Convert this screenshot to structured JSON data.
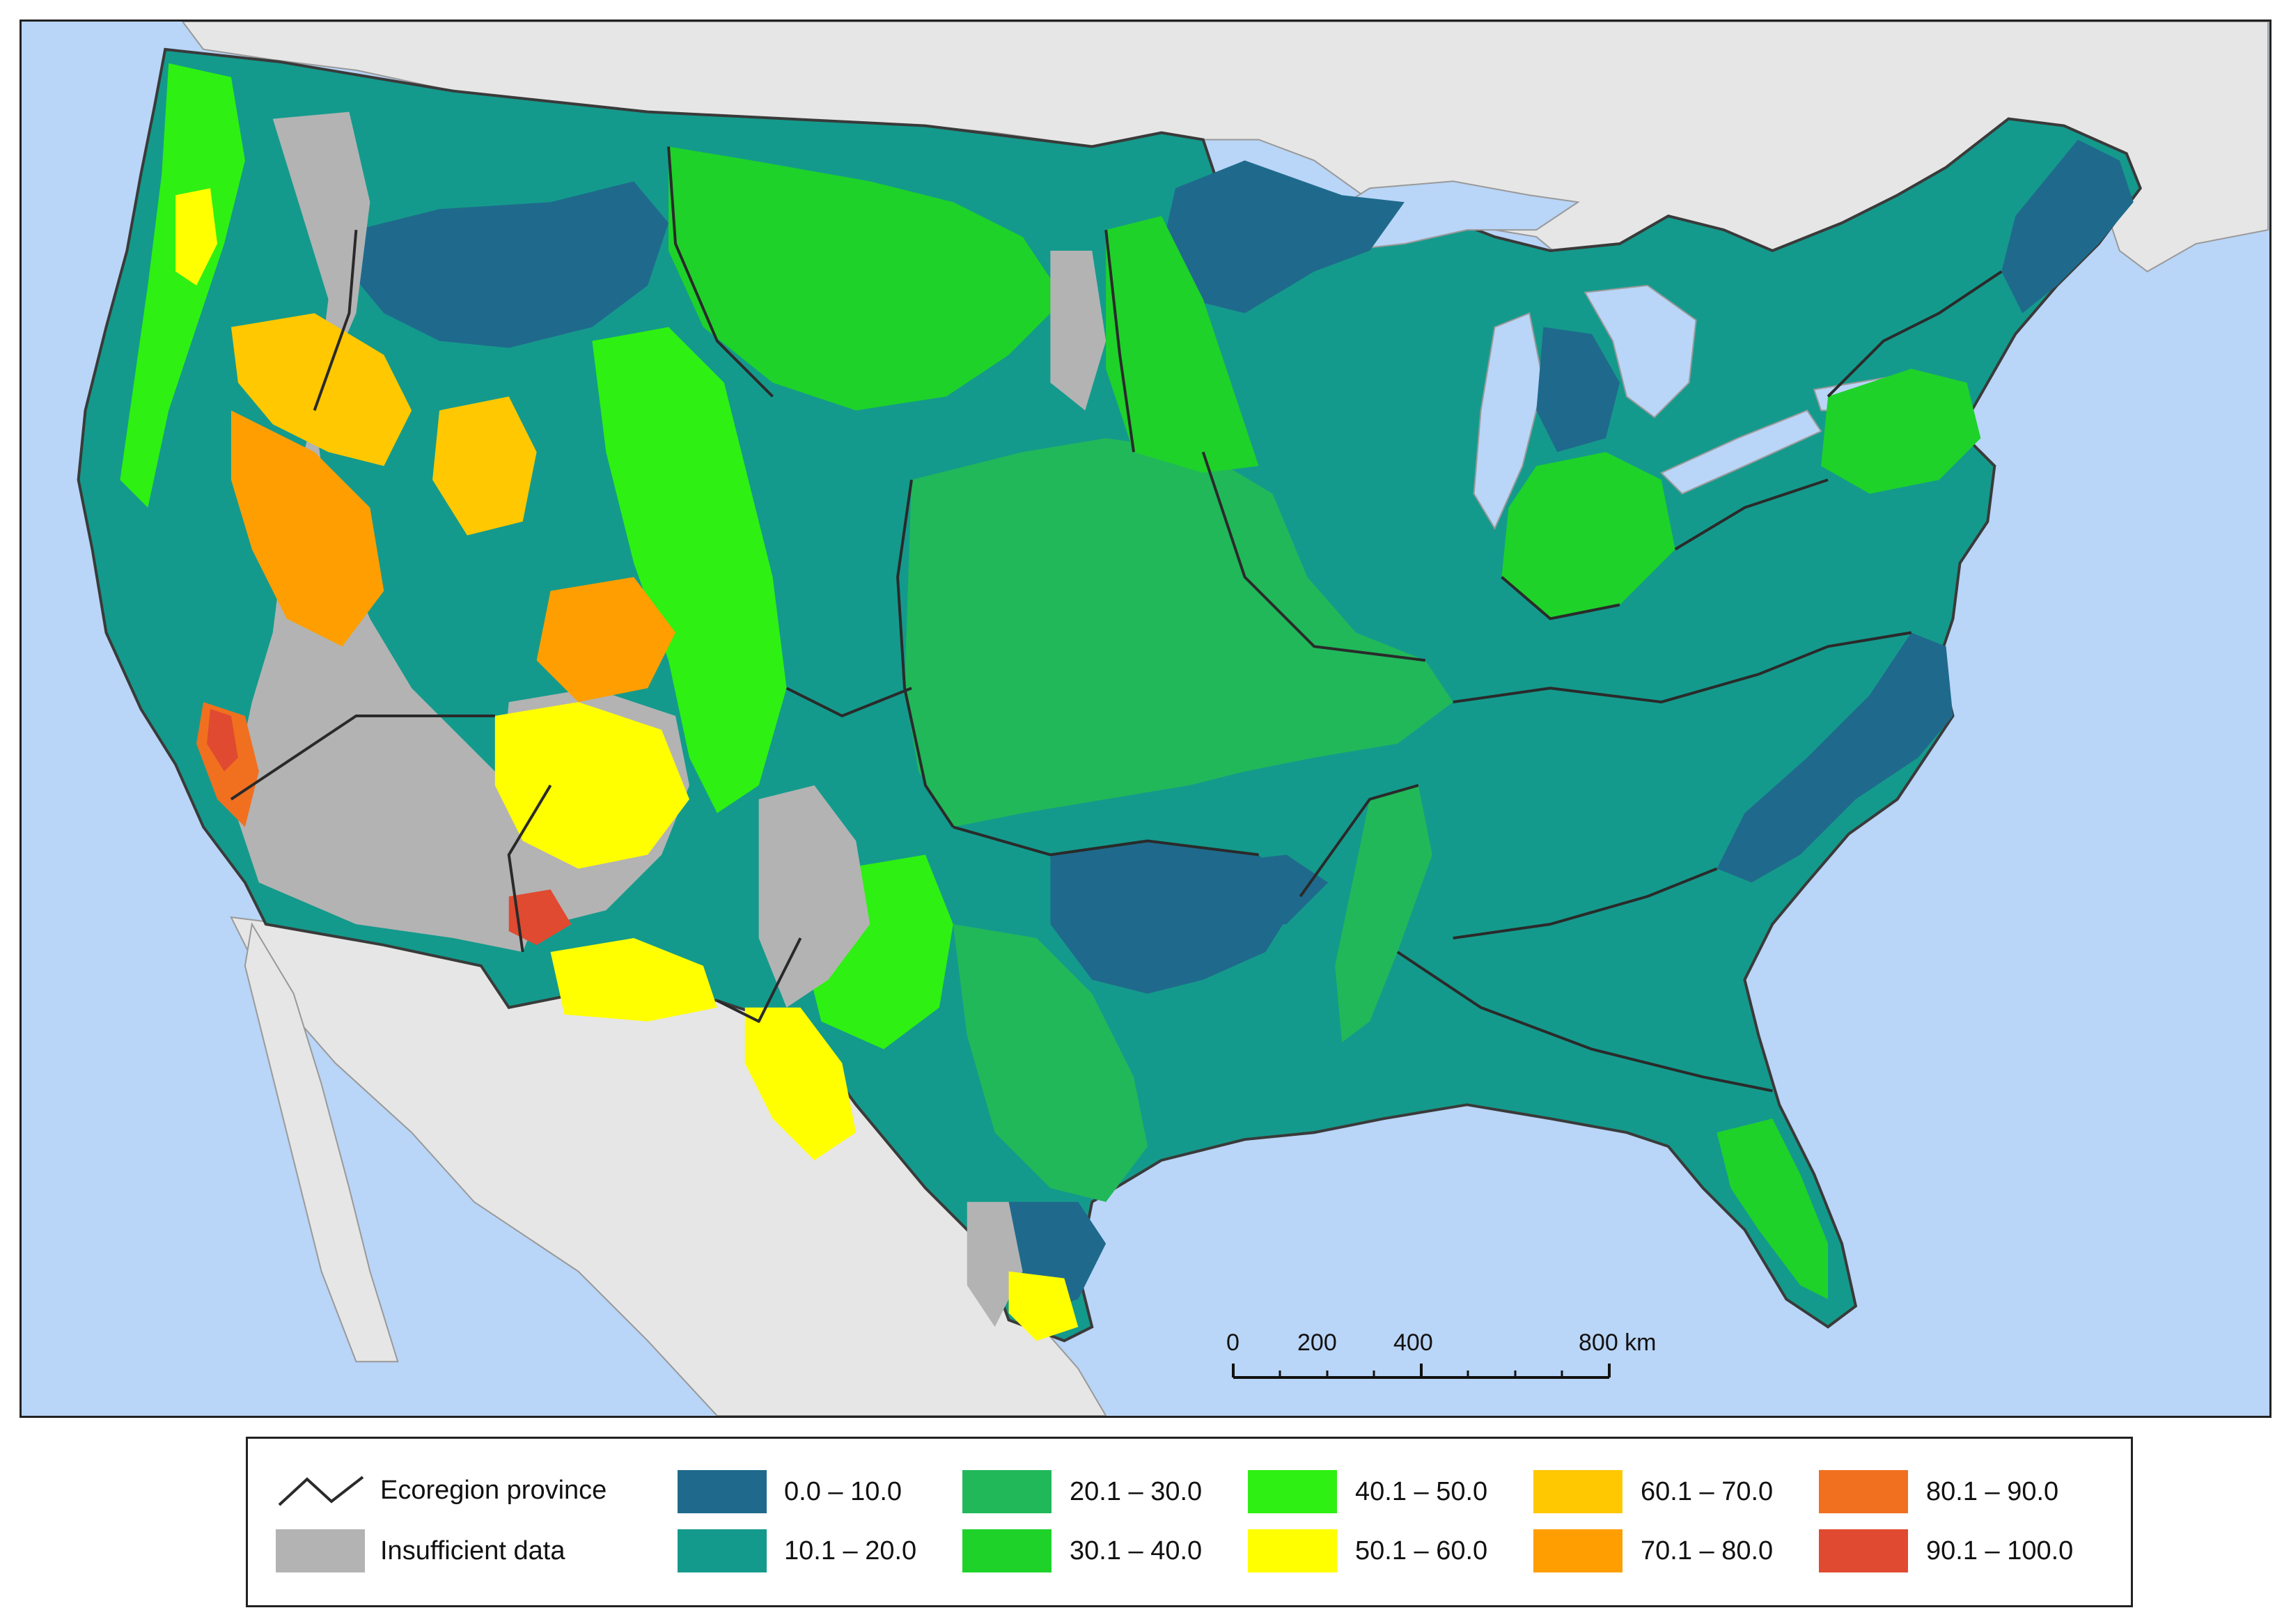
{
  "map": {
    "scale_bar": {
      "ticks": [
        "0",
        "200",
        "400",
        "800 km"
      ]
    },
    "colors": {
      "ocean": "#b9d5f7",
      "land_outside": "#e6e6e6",
      "border": "#3a3a3a"
    }
  },
  "legend": {
    "ecoregion_label": "Ecoregion province",
    "insufficient_label": "Insufficient data",
    "insufficient_color": "#b3b3b3",
    "classes": [
      {
        "label": "0.0 – 10.0",
        "color": "#1f6a8c"
      },
      {
        "label": "10.1 – 20.0",
        "color": "#149a8c"
      },
      {
        "label": "20.1 – 30.0",
        "color": "#21b85a"
      },
      {
        "label": "30.1 – 40.0",
        "color": "#1ed22a"
      },
      {
        "label": "40.1 – 50.0",
        "color": "#2ef012"
      },
      {
        "label": "50.1 – 60.0",
        "color": "#ffff00"
      },
      {
        "label": "60.1 – 70.0",
        "color": "#ffc800"
      },
      {
        "label": "70.1 – 80.0",
        "color": "#ff9e00"
      },
      {
        "label": "80.1 – 90.0",
        "color": "#f07020"
      },
      {
        "label": "90.1 – 100.0",
        "color": "#e04a30"
      }
    ]
  }
}
